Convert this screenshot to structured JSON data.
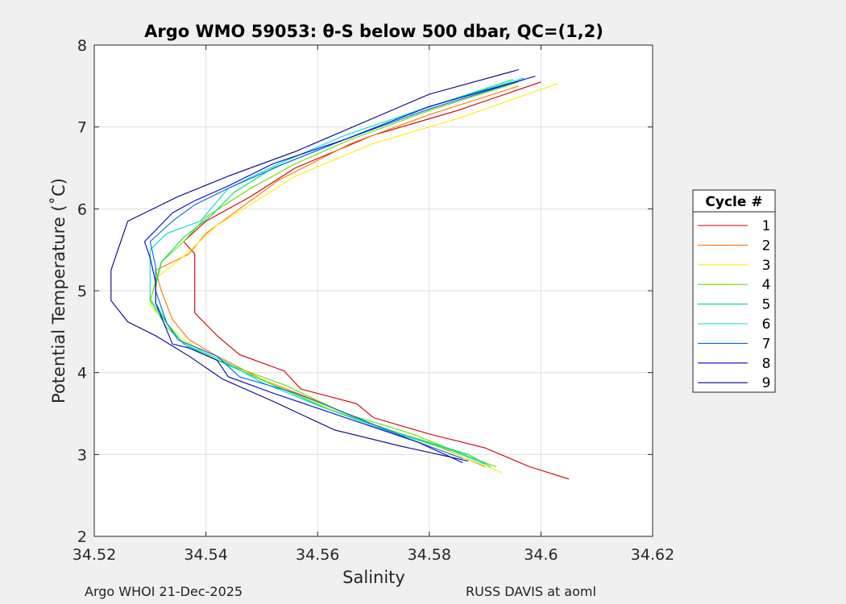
{
  "chart_data": {
    "type": "line",
    "title": "Argo WMO 59053: θ-S below 500 dbar,  QC=(1,2)",
    "xlabel": "Salinity",
    "ylabel": "Potential Temperature (˚C)",
    "xlim": [
      34.52,
      34.62
    ],
    "ylim": [
      2,
      8
    ],
    "xticks": [
      "34.52",
      "34.54",
      "34.56",
      "34.58",
      "34.6",
      "34.62"
    ],
    "xtick_values": [
      34.52,
      34.54,
      34.56,
      34.58,
      34.6,
      34.62
    ],
    "yticks": [
      "2",
      "3",
      "4",
      "5",
      "6",
      "7",
      "8"
    ],
    "ytick_values": [
      2,
      3,
      4,
      5,
      6,
      7,
      8
    ],
    "grid": true,
    "legend_title": "Cycle #",
    "legend_position": "right",
    "series": [
      {
        "name": "1",
        "color": "#cc0000",
        "points": [
          [
            34.6,
            7.55
          ],
          [
            34.585,
            7.2
          ],
          [
            34.57,
            6.9
          ],
          [
            34.556,
            6.5
          ],
          [
            34.548,
            6.15
          ],
          [
            34.54,
            5.85
          ],
          [
            34.536,
            5.6
          ],
          [
            34.538,
            5.45
          ],
          [
            34.538,
            5.27
          ],
          [
            34.538,
            4.73
          ],
          [
            34.542,
            4.45
          ],
          [
            34.546,
            4.22
          ],
          [
            34.554,
            4.02
          ],
          [
            34.557,
            3.8
          ],
          [
            34.567,
            3.62
          ],
          [
            34.57,
            3.45
          ],
          [
            34.58,
            3.25
          ],
          [
            34.59,
            3.08
          ],
          [
            34.598,
            2.85
          ],
          [
            34.605,
            2.7
          ]
        ]
      },
      {
        "name": "2",
        "color": "#ff7700",
        "points": [
          [
            34.596,
            7.5
          ],
          [
            34.58,
            7.15
          ],
          [
            34.566,
            6.8
          ],
          [
            34.553,
            6.35
          ],
          [
            34.545,
            5.95
          ],
          [
            34.54,
            5.7
          ],
          [
            34.537,
            5.45
          ],
          [
            34.531,
            5.25
          ],
          [
            34.532,
            5.0
          ],
          [
            34.534,
            4.65
          ],
          [
            34.537,
            4.4
          ],
          [
            34.542,
            4.2
          ],
          [
            34.55,
            3.92
          ],
          [
            34.56,
            3.65
          ],
          [
            34.57,
            3.35
          ],
          [
            34.58,
            3.15
          ],
          [
            34.59,
            2.85
          ]
        ]
      },
      {
        "name": "3",
        "color": "#ffee00",
        "points": [
          [
            34.603,
            7.53
          ],
          [
            34.585,
            7.1
          ],
          [
            34.57,
            6.8
          ],
          [
            34.556,
            6.4
          ],
          [
            34.548,
            6.05
          ],
          [
            34.542,
            5.8
          ],
          [
            34.536,
            5.42
          ],
          [
            34.531,
            5.15
          ],
          [
            34.53,
            4.83
          ],
          [
            34.533,
            4.6
          ],
          [
            34.536,
            4.4
          ],
          [
            34.542,
            4.15
          ],
          [
            34.55,
            3.92
          ],
          [
            34.56,
            3.62
          ],
          [
            34.57,
            3.35
          ],
          [
            34.582,
            3.08
          ],
          [
            34.593,
            2.78
          ]
        ]
      },
      {
        "name": "4",
        "color": "#66dd00",
        "points": [
          [
            34.596,
            7.55
          ],
          [
            34.58,
            7.2
          ],
          [
            34.566,
            6.85
          ],
          [
            34.556,
            6.55
          ],
          [
            34.548,
            6.25
          ],
          [
            34.54,
            5.9
          ],
          [
            34.536,
            5.6
          ],
          [
            34.532,
            5.35
          ],
          [
            34.531,
            5.1
          ],
          [
            34.53,
            4.88
          ],
          [
            34.533,
            4.55
          ],
          [
            34.537,
            4.3
          ],
          [
            34.544,
            4.1
          ],
          [
            34.554,
            3.85
          ],
          [
            34.565,
            3.5
          ],
          [
            34.577,
            3.25
          ],
          [
            34.588,
            2.95
          ],
          [
            34.592,
            2.85
          ]
        ]
      },
      {
        "name": "5",
        "color": "#00dd66",
        "points": [
          [
            34.595,
            7.58
          ],
          [
            34.578,
            7.2
          ],
          [
            34.565,
            6.85
          ],
          [
            34.552,
            6.5
          ],
          [
            34.545,
            6.2
          ],
          [
            34.541,
            5.92
          ],
          [
            34.536,
            5.65
          ],
          [
            34.532,
            5.35
          ],
          [
            34.531,
            5.05
          ],
          [
            34.531,
            4.85
          ],
          [
            34.533,
            4.6
          ],
          [
            34.536,
            4.35
          ],
          [
            34.542,
            4.15
          ],
          [
            34.552,
            3.85
          ],
          [
            34.562,
            3.55
          ],
          [
            34.575,
            3.25
          ],
          [
            34.587,
            3.0
          ],
          [
            34.591,
            2.85
          ]
        ]
      },
      {
        "name": "6",
        "color": "#00dddd",
        "points": [
          [
            34.597,
            7.6
          ],
          [
            34.58,
            7.25
          ],
          [
            34.565,
            6.9
          ],
          [
            34.553,
            6.55
          ],
          [
            34.544,
            6.25
          ],
          [
            34.539,
            5.85
          ],
          [
            34.533,
            5.7
          ],
          [
            34.53,
            5.5
          ],
          [
            34.53,
            5.2
          ],
          [
            34.53,
            4.9
          ],
          [
            34.533,
            4.6
          ],
          [
            34.536,
            4.35
          ],
          [
            34.543,
            4.15
          ],
          [
            34.55,
            3.88
          ],
          [
            34.56,
            3.6
          ],
          [
            34.572,
            3.3
          ],
          [
            34.584,
            3.05
          ],
          [
            34.59,
            2.88
          ]
        ]
      },
      {
        "name": "7",
        "color": "#0066ee",
        "points": [
          [
            34.597,
            7.58
          ],
          [
            34.58,
            7.22
          ],
          [
            34.565,
            6.85
          ],
          [
            34.554,
            6.55
          ],
          [
            34.544,
            6.25
          ],
          [
            34.538,
            6.05
          ],
          [
            34.534,
            5.85
          ],
          [
            34.53,
            5.6
          ],
          [
            34.531,
            5.3
          ],
          [
            34.531,
            5.0
          ],
          [
            34.533,
            4.6
          ],
          [
            34.535,
            4.4
          ],
          [
            34.542,
            4.2
          ],
          [
            34.546,
            3.95
          ],
          [
            34.556,
            3.75
          ],
          [
            34.566,
            3.48
          ],
          [
            34.576,
            3.2
          ],
          [
            34.586,
            2.95
          ]
        ]
      },
      {
        "name": "8",
        "color": "#0000cc",
        "points": [
          [
            34.599,
            7.62
          ],
          [
            34.58,
            7.25
          ],
          [
            34.565,
            6.85
          ],
          [
            34.552,
            6.55
          ],
          [
            34.544,
            6.28
          ],
          [
            34.538,
            6.1
          ],
          [
            34.534,
            5.95
          ],
          [
            34.529,
            5.6
          ],
          [
            34.53,
            5.4
          ],
          [
            34.531,
            5.1
          ],
          [
            34.531,
            4.85
          ],
          [
            34.534,
            4.35
          ],
          [
            34.537,
            4.3
          ],
          [
            34.542,
            4.15
          ],
          [
            34.544,
            3.95
          ],
          [
            34.552,
            3.75
          ],
          [
            34.565,
            3.45
          ],
          [
            34.578,
            3.15
          ],
          [
            34.586,
            2.9
          ]
        ]
      },
      {
        "name": "9",
        "color": "#000088",
        "points": [
          [
            34.596,
            7.7
          ],
          [
            34.58,
            7.4
          ],
          [
            34.568,
            7.05
          ],
          [
            34.556,
            6.7
          ],
          [
            34.544,
            6.4
          ],
          [
            34.535,
            6.15
          ],
          [
            34.532,
            6.05
          ],
          [
            34.526,
            5.85
          ],
          [
            34.525,
            5.65
          ],
          [
            34.524,
            5.45
          ],
          [
            34.523,
            5.25
          ],
          [
            34.523,
            5.05
          ],
          [
            34.523,
            4.88
          ],
          [
            34.526,
            4.62
          ],
          [
            34.531,
            4.45
          ],
          [
            34.537,
            4.2
          ],
          [
            34.543,
            3.92
          ],
          [
            34.552,
            3.65
          ],
          [
            34.563,
            3.3
          ],
          [
            34.575,
            3.1
          ],
          [
            34.587,
            2.92
          ]
        ]
      }
    ]
  },
  "footer": {
    "left": "Argo WHOI 21-Dec-2025",
    "right": "RUSS DAVIS at aoml"
  }
}
